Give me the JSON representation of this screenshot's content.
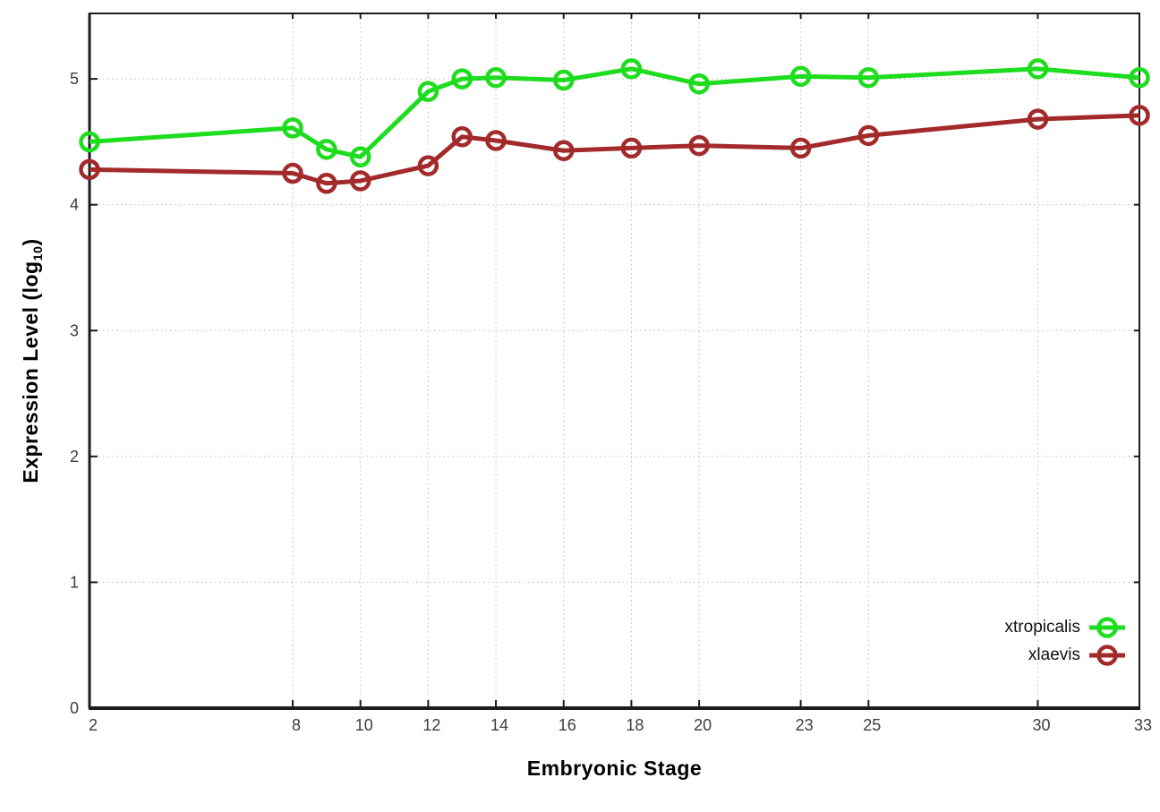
{
  "chart_data": {
    "type": "line",
    "title": "",
    "xlabel": "Embryonic Stage",
    "ylabel_prefix": "Expression Level (log",
    "ylabel_sub": "10",
    "ylabel_suffix": ")",
    "x": [
      2,
      8,
      9,
      10,
      12,
      13,
      14,
      16,
      18,
      20,
      23,
      25,
      30,
      33
    ],
    "series": [
      {
        "name": "xtropicalis",
        "color": "#1edc1e",
        "values": [
          4.5,
          4.61,
          4.44,
          4.38,
          4.9,
          5.0,
          5.01,
          4.99,
          5.08,
          4.96,
          5.02,
          5.01,
          5.08,
          5.01
        ]
      },
      {
        "name": "xlaevis",
        "color": "#a32a2a",
        "values": [
          4.28,
          4.25,
          4.17,
          4.19,
          4.31,
          4.54,
          4.51,
          4.43,
          4.45,
          4.47,
          4.45,
          4.55,
          4.68,
          4.71
        ]
      }
    ],
    "xlim": [
      2,
      33
    ],
    "ylim": [
      0,
      5.52
    ],
    "xticks_labeled": [
      2,
      8,
      10,
      12,
      14,
      16,
      18,
      20,
      23,
      25,
      30,
      33
    ],
    "yticks": [
      0,
      1,
      2,
      3,
      4,
      5
    ],
    "grid": true,
    "legend_position": "inside-bottom-right",
    "marker": "open-circle",
    "colors": {
      "grid": "#bbbbbb",
      "border": "#1c1c1c",
      "tick_label": "#3d3d3d",
      "background": "#ffffff"
    }
  }
}
